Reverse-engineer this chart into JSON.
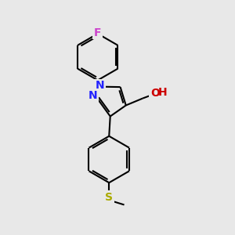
{
  "background_color": "#e8e8e8",
  "bond_color": "#000000",
  "bond_width": 1.5,
  "atom_labels": {
    "F": {
      "color": "#cc44cc",
      "fontsize": 10
    },
    "N": {
      "color": "#2222ff",
      "fontsize": 10
    },
    "O": {
      "color": "#cc0000",
      "fontsize": 10
    },
    "H": {
      "color": "#cc0000",
      "fontsize": 10
    },
    "S": {
      "color": "#aaaa00",
      "fontsize": 10
    }
  },
  "figsize": [
    3.0,
    3.0
  ],
  "dpi": 100,
  "xlim": [
    0,
    10
  ],
  "ylim": [
    0,
    10
  ]
}
